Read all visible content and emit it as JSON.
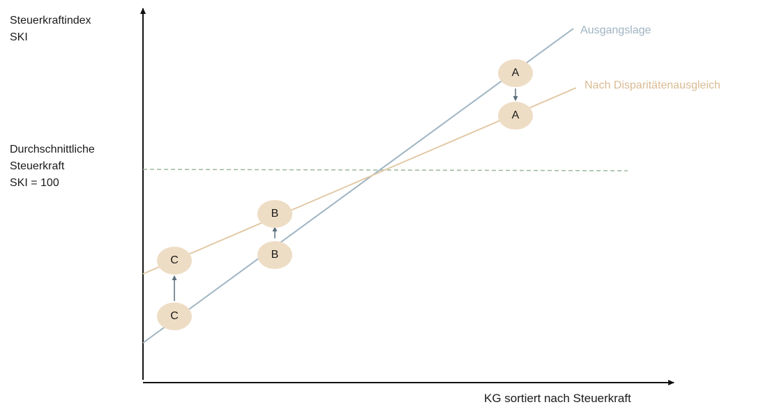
{
  "labels": {
    "y_axis_line1": "Steuerkraftindex",
    "y_axis_line2": "SKI",
    "avg_line1": "Durchschnittliche",
    "avg_line2": "Steuerkraft",
    "avg_line3": "SKI = 100",
    "x_axis": "KG sortiert nach Steuerkraft"
  },
  "series": {
    "before": "Ausgangslage",
    "after": "Nach Disparitätenausgleich"
  },
  "nodes": {
    "a_before": "A",
    "a_after": "A",
    "b_before": "B",
    "b_after": "B",
    "c_before": "C",
    "c_after": "C"
  },
  "colors": {
    "before_line": "#9fb4c2",
    "after_line": "#e3c9a6",
    "average_line": "#9bb89b",
    "node_fill": "#eeddc5",
    "arrow": "#5a6e7c",
    "axis": "#111111"
  }
}
